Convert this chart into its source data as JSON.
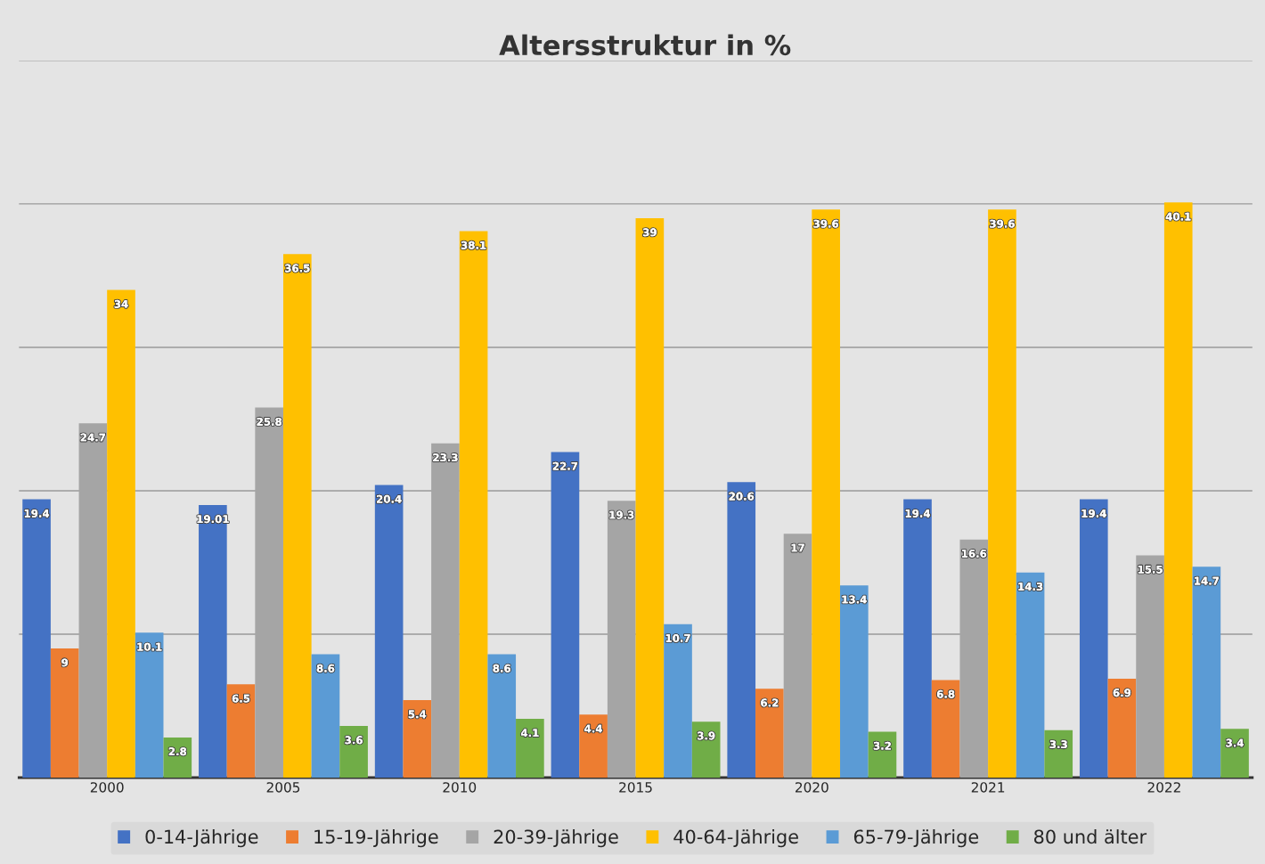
{
  "chart_data": {
    "type": "bar",
    "title": "Altersstruktur in %",
    "categories": [
      "2000",
      "2005",
      "2010",
      "2015",
      "2020",
      "2021",
      "2022"
    ],
    "series": [
      {
        "name": "0-14-Jährige",
        "color": "#4472c4",
        "values": [
          19.4,
          19.01,
          20.4,
          22.7,
          20.6,
          19.4,
          19.4
        ]
      },
      {
        "name": "15-19-Jährige",
        "color": "#ed7d31",
        "values": [
          9,
          6.5,
          5.4,
          4.4,
          6.2,
          6.8,
          6.9
        ]
      },
      {
        "name": "20-39-Jährige",
        "color": "#a5a5a5",
        "values": [
          24.7,
          25.8,
          23.3,
          19.3,
          17,
          16.6,
          15.5
        ]
      },
      {
        "name": "40-64-Jährige",
        "color": "#ffc000",
        "values": [
          34,
          36.5,
          38.1,
          39,
          39.6,
          39.6,
          40.1
        ]
      },
      {
        "name": "65-79-Jährige",
        "color": "#5b9bd5",
        "values": [
          10.1,
          8.6,
          8.6,
          10.7,
          13.4,
          14.3,
          14.7
        ]
      },
      {
        "name": "80 und älter",
        "color": "#70ad47",
        "values": [
          2.8,
          3.6,
          4.1,
          3.9,
          3.2,
          3.3,
          3.4
        ]
      }
    ],
    "ylim": [
      0,
      50
    ],
    "yticks": [
      {
        "value": 0,
        "label": null
      },
      {
        "value": 10,
        "label": null
      },
      {
        "value": 20,
        "label": null
      },
      {
        "value": 30,
        "label": null
      },
      {
        "value": 40,
        "label": null
      },
      {
        "value": 50,
        "label": null
      }
    ],
    "tick_labels": "x",
    "grid": "y",
    "legend": "bottom",
    "data_labels": true
  }
}
